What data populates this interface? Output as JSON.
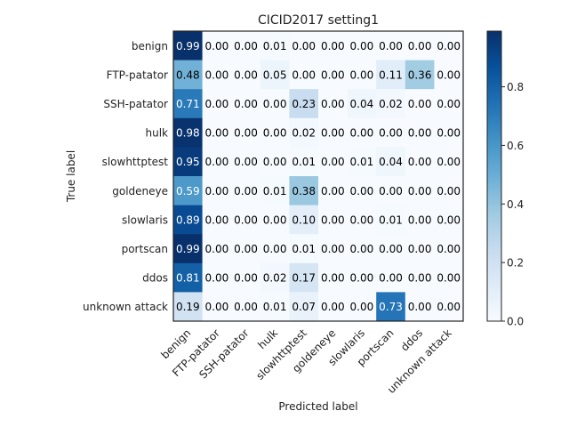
{
  "chart_data": {
    "type": "heatmap",
    "title": "CICID2017 setting1",
    "xlabel": "Predicted label",
    "ylabel": "True label",
    "row_labels": [
      "benign",
      "FTP-patator",
      "SSH-patator",
      "hulk",
      "slowhttptest",
      "goldeneye",
      "slowlaris",
      "portscan",
      "ddos",
      "unknown attack"
    ],
    "col_labels": [
      "benign",
      "FTP-patator",
      "SSH-patator",
      "hulk",
      "slowhttptest",
      "goldeneye",
      "slowlaris",
      "portscan",
      "ddos",
      "unknown attack"
    ],
    "values": [
      [
        0.99,
        0.0,
        0.0,
        0.01,
        0.0,
        0.0,
        0.0,
        0.0,
        0.0,
        0.0
      ],
      [
        0.48,
        0.0,
        0.0,
        0.05,
        0.0,
        0.0,
        0.0,
        0.11,
        0.36,
        0.0
      ],
      [
        0.71,
        0.0,
        0.0,
        0.0,
        0.23,
        0.0,
        0.04,
        0.02,
        0.0,
        0.0
      ],
      [
        0.98,
        0.0,
        0.0,
        0.0,
        0.02,
        0.0,
        0.0,
        0.0,
        0.0,
        0.0
      ],
      [
        0.95,
        0.0,
        0.0,
        0.0,
        0.01,
        0.0,
        0.01,
        0.04,
        0.0,
        0.0
      ],
      [
        0.59,
        0.0,
        0.0,
        0.01,
        0.38,
        0.0,
        0.0,
        0.0,
        0.0,
        0.0
      ],
      [
        0.89,
        0.0,
        0.0,
        0.0,
        0.1,
        0.0,
        0.0,
        0.01,
        0.0,
        0.0
      ],
      [
        0.99,
        0.0,
        0.0,
        0.0,
        0.01,
        0.0,
        0.0,
        0.0,
        0.0,
        0.0
      ],
      [
        0.81,
        0.0,
        0.0,
        0.02,
        0.17,
        0.0,
        0.0,
        0.0,
        0.0,
        0.0
      ],
      [
        0.19,
        0.0,
        0.0,
        0.01,
        0.07,
        0.0,
        0.0,
        0.73,
        0.0,
        0.0
      ]
    ],
    "value_format": "0.00",
    "colormap": "Blues",
    "colorbar": {
      "range": [
        0,
        0.99
      ],
      "ticks": [
        0.0,
        0.2,
        0.4,
        0.6,
        0.8
      ],
      "tick_labels": [
        "0.0",
        "0.2",
        "0.4",
        "0.6",
        "0.8"
      ]
    },
    "grid": false,
    "legend": "none"
  }
}
